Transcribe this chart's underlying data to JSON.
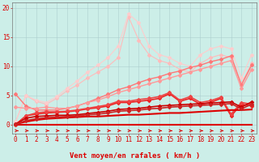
{
  "background_color": "#cceee8",
  "grid_color": "#aacccc",
  "x_values": [
    0,
    1,
    2,
    3,
    4,
    5,
    6,
    7,
    8,
    9,
    10,
    11,
    12,
    13,
    14,
    15,
    16,
    17,
    18,
    19,
    20,
    21,
    22,
    23
  ],
  "xlabel": "Vent moyen/en rafales ( km/h )",
  "yticks": [
    0,
    5,
    10,
    15,
    20
  ],
  "ylim": [
    -1.5,
    21
  ],
  "xlim": [
    -0.3,
    23.5
  ],
  "lines": [
    {
      "y": [
        0.0,
        0.0,
        0.0,
        0.0,
        0.0,
        0.0,
        0.0,
        0.0,
        0.0,
        0.0,
        0.0,
        0.0,
        0.0,
        0.0,
        0.0,
        0.0,
        0.0,
        0.0,
        0.0,
        0.0,
        0.0,
        0.0,
        0.0,
        0.0
      ],
      "color": "#dd0000",
      "lw": 1.5,
      "marker": null,
      "zorder": 5
    },
    {
      "y": [
        0.1,
        0.5,
        0.8,
        1.0,
        1.1,
        1.2,
        1.3,
        1.4,
        1.4,
        1.5,
        1.6,
        1.7,
        1.7,
        1.8,
        1.9,
        2.0,
        2.0,
        2.1,
        2.2,
        2.3,
        2.4,
        2.5,
        2.5,
        2.6
      ],
      "color": "#dd0000",
      "lw": 1.5,
      "marker": null,
      "zorder": 5
    },
    {
      "y": [
        0.1,
        1.1,
        1.4,
        1.5,
        1.6,
        1.6,
        1.7,
        1.9,
        2.1,
        2.3,
        2.6,
        2.7,
        2.8,
        3.0,
        3.2,
        3.3,
        3.4,
        3.5,
        3.6,
        3.7,
        3.8,
        3.9,
        3.0,
        3.9
      ],
      "color": "#cc0000",
      "lw": 1.2,
      "marker": "D",
      "ms": 2,
      "zorder": 5
    },
    {
      "y": [
        0.05,
        0.7,
        1.0,
        1.2,
        1.3,
        1.4,
        1.5,
        1.7,
        1.8,
        2.0,
        2.3,
        2.4,
        2.5,
        2.7,
        2.8,
        3.0,
        3.1,
        3.2,
        3.3,
        3.4,
        3.5,
        3.6,
        2.7,
        3.5
      ],
      "color": "#cc2222",
      "lw": 1.2,
      "marker": "D",
      "ms": 2,
      "zorder": 5
    },
    {
      "y": [
        0.0,
        1.5,
        1.8,
        2.0,
        2.1,
        2.2,
        2.4,
        2.7,
        2.9,
        3.2,
        3.8,
        3.8,
        4.0,
        4.2,
        4.5,
        5.3,
        4.0,
        4.5,
        3.5,
        3.8,
        4.5,
        1.5,
        3.5,
        3.2
      ],
      "color": "#ee2222",
      "lw": 1.2,
      "marker": "D",
      "ms": 2,
      "zorder": 4
    },
    {
      "y": [
        0.0,
        1.5,
        2.0,
        2.2,
        2.2,
        2.3,
        2.5,
        2.8,
        3.1,
        3.4,
        4.0,
        4.0,
        4.3,
        4.5,
        4.8,
        5.5,
        4.2,
        4.8,
        3.8,
        4.1,
        4.7,
        1.8,
        3.8,
        3.5
      ],
      "color": "#ee4444",
      "lw": 1.2,
      "marker": "D",
      "ms": 2,
      "zorder": 4
    },
    {
      "y": [
        5.2,
        3.2,
        2.5,
        2.5,
        2.5,
        2.8,
        3.2,
        3.8,
        4.5,
        5.2,
        6.0,
        6.5,
        7.2,
        7.8,
        8.2,
        8.8,
        9.2,
        9.8,
        10.2,
        10.8,
        11.2,
        11.8,
        6.8,
        10.2
      ],
      "color": "#ff7777",
      "lw": 1.0,
      "marker": "D",
      "ms": 2,
      "zorder": 3
    },
    {
      "y": [
        3.0,
        2.8,
        2.8,
        3.0,
        2.8,
        2.8,
        3.2,
        3.8,
        4.2,
        4.8,
        5.5,
        6.0,
        6.5,
        7.0,
        7.5,
        8.0,
        8.5,
        9.0,
        9.5,
        10.0,
        10.5,
        11.0,
        6.2,
        9.5
      ],
      "color": "#ff9999",
      "lw": 1.0,
      "marker": "D",
      "ms": 2,
      "zorder": 3
    },
    {
      "y": [
        0.5,
        5.0,
        4.0,
        3.5,
        4.5,
        5.8,
        6.8,
        8.0,
        9.0,
        10.0,
        11.5,
        18.5,
        14.5,
        12.0,
        11.0,
        10.5,
        9.5,
        9.0,
        10.5,
        11.5,
        12.0,
        11.5,
        7.0,
        10.5
      ],
      "color": "#ffbbbb",
      "lw": 0.8,
      "marker": "D",
      "ms": 2,
      "zorder": 2
    },
    {
      "y": [
        0.5,
        5.0,
        4.2,
        3.8,
        4.8,
        6.2,
        7.5,
        9.0,
        10.2,
        11.5,
        13.5,
        19.0,
        17.5,
        13.5,
        12.0,
        11.5,
        10.5,
        10.0,
        12.0,
        13.0,
        13.5,
        13.0,
        8.0,
        12.0
      ],
      "color": "#ffcccc",
      "lw": 0.8,
      "marker": "*",
      "ms": 3,
      "zorder": 2
    }
  ],
  "arrow_color": "#dd0000",
  "tick_color": "#dd0000",
  "label_color": "#dd0000",
  "label_fontsize": 6.5,
  "tick_fontsize": 5.5
}
